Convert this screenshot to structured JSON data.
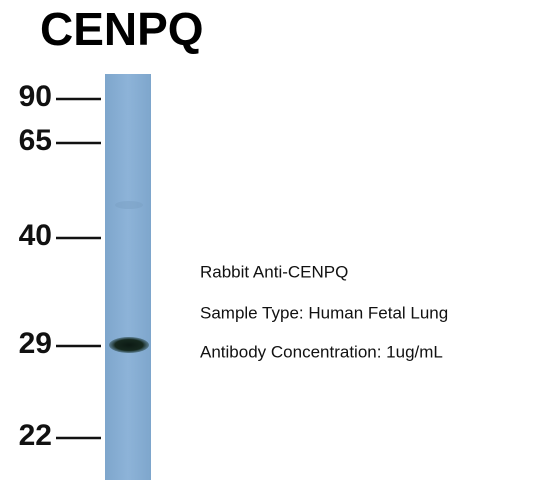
{
  "header": {
    "title": "CENPQ"
  },
  "markers": [
    "90",
    "65",
    "40",
    "29",
    "22"
  ],
  "caption": [
    "Rabbit Anti-CENPQ",
    "Sample Type: Human Fetal Lung",
    "Antibody Concentration: 1ug/mL"
  ]
}
